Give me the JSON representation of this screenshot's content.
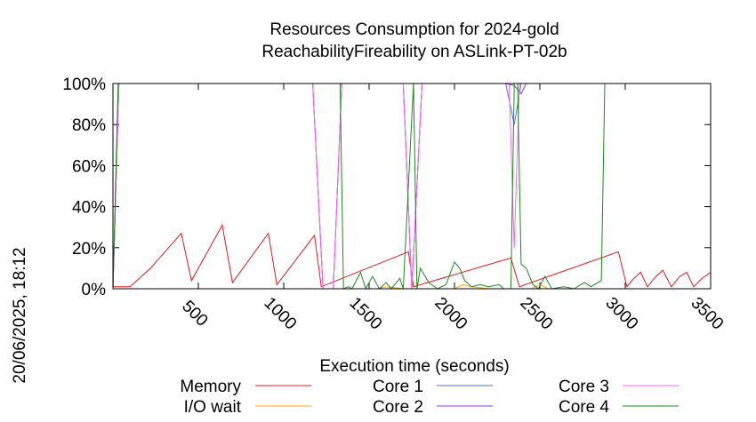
{
  "chart_data": {
    "type": "line",
    "title": "Resources Consumption for 2024-gold",
    "subtitle": "ReachabilityFireability on ASLink-PT-02b",
    "xlabel": "Execution time (seconds)",
    "ylabel": "",
    "side_label": "20/06/2025, 18:12",
    "xlim": [
      0,
      3500
    ],
    "ylim": [
      0,
      100
    ],
    "x_ticks": [
      500,
      1000,
      1500,
      2000,
      2500,
      3000,
      3500
    ],
    "y_ticks": [
      {
        "v": 0,
        "label": "0%"
      },
      {
        "v": 20,
        "label": "20%"
      },
      {
        "v": 40,
        "label": "40%"
      },
      {
        "v": 60,
        "label": "60%"
      },
      {
        "v": 80,
        "label": "80%"
      },
      {
        "v": 100,
        "label": "100%"
      }
    ],
    "grid": false,
    "legend_position": "bottom",
    "series": [
      {
        "name": "Memory",
        "color": "#e41a1c",
        "points": [
          [
            0,
            1
          ],
          [
            20,
            1
          ],
          [
            100,
            1
          ],
          [
            220,
            10
          ],
          [
            400,
            27
          ],
          [
            460,
            4
          ],
          [
            640,
            31
          ],
          [
            700,
            3
          ],
          [
            910,
            27
          ],
          [
            960,
            2
          ],
          [
            1180,
            26
          ],
          [
            1220,
            1
          ],
          [
            1730,
            18
          ],
          [
            1760,
            1
          ],
          [
            2330,
            15
          ],
          [
            2380,
            1
          ],
          [
            2960,
            18
          ],
          [
            3010,
            1
          ],
          [
            3050,
            5
          ],
          [
            3090,
            8
          ],
          [
            3130,
            1
          ],
          [
            3180,
            6
          ],
          [
            3220,
            9
          ],
          [
            3270,
            1
          ],
          [
            3320,
            6
          ],
          [
            3360,
            8
          ],
          [
            3400,
            1
          ],
          [
            3450,
            5
          ],
          [
            3500,
            8
          ]
        ]
      },
      {
        "name": "I/O wait",
        "color": "#ffa500",
        "points": [
          [
            0,
            0
          ],
          [
            1200,
            0
          ],
          [
            1550,
            0
          ],
          [
            1600,
            1
          ],
          [
            1700,
            0
          ],
          [
            2000,
            0
          ],
          [
            2050,
            2
          ],
          [
            2100,
            1
          ],
          [
            2200,
            0
          ],
          [
            2450,
            0
          ],
          [
            2500,
            2
          ],
          [
            2550,
            0
          ],
          [
            2900,
            0
          ],
          [
            3500,
            0
          ]
        ]
      },
      {
        "name": "Core 1",
        "color": "#4c72d8",
        "points": [
          [
            0,
            0
          ],
          [
            35,
            100
          ],
          [
            1170,
            100
          ],
          [
            1230,
            0
          ],
          [
            1290,
            0
          ],
          [
            1340,
            100
          ],
          [
            1700,
            100
          ],
          [
            1750,
            0
          ],
          [
            1810,
            100
          ],
          [
            2300,
            100
          ],
          [
            2350,
            80
          ],
          [
            2390,
            100
          ],
          [
            3500,
            100
          ]
        ]
      },
      {
        "name": "Core 2",
        "color": "#9933cc",
        "points": [
          [
            0,
            0
          ],
          [
            35,
            100
          ],
          [
            1170,
            100
          ],
          [
            1230,
            0
          ],
          [
            1290,
            0
          ],
          [
            1340,
            100
          ],
          [
            1700,
            100
          ],
          [
            1750,
            0
          ],
          [
            1810,
            100
          ],
          [
            2300,
            100
          ],
          [
            2350,
            99
          ],
          [
            2390,
            95
          ],
          [
            2420,
            100
          ],
          [
            3500,
            100
          ]
        ]
      },
      {
        "name": "Core 3",
        "color": "#ff66ff",
        "points": [
          [
            0,
            0
          ],
          [
            35,
            100
          ],
          [
            1170,
            100
          ],
          [
            1230,
            0
          ],
          [
            1290,
            0
          ],
          [
            1340,
            100
          ],
          [
            1700,
            100
          ],
          [
            1750,
            0
          ],
          [
            1810,
            100
          ],
          [
            2320,
            100
          ],
          [
            2350,
            20
          ],
          [
            2380,
            100
          ],
          [
            3500,
            100
          ]
        ]
      },
      {
        "name": "Core 4",
        "color": "#1a8a1a",
        "points": [
          [
            0,
            0
          ],
          [
            30,
            100
          ],
          [
            1330,
            100
          ],
          [
            1350,
            0
          ],
          [
            1380,
            1
          ],
          [
            1400,
            0
          ],
          [
            1450,
            8
          ],
          [
            1480,
            0
          ],
          [
            1520,
            6
          ],
          [
            1560,
            0
          ],
          [
            1600,
            3
          ],
          [
            1630,
            0
          ],
          [
            1680,
            5
          ],
          [
            1700,
            0
          ],
          [
            1760,
            100
          ],
          [
            1780,
            0
          ],
          [
            1800,
            10
          ],
          [
            1850,
            3
          ],
          [
            1900,
            0
          ],
          [
            1950,
            2
          ],
          [
            2000,
            13
          ],
          [
            2030,
            10
          ],
          [
            2060,
            4
          ],
          [
            2100,
            1
          ],
          [
            2150,
            2
          ],
          [
            2200,
            1
          ],
          [
            2260,
            2
          ],
          [
            2290,
            0
          ],
          [
            2330,
            0
          ],
          [
            2350,
            100
          ],
          [
            2370,
            100
          ],
          [
            2390,
            12
          ],
          [
            2420,
            10
          ],
          [
            2460,
            2
          ],
          [
            2490,
            0
          ],
          [
            2530,
            6
          ],
          [
            2570,
            0
          ],
          [
            2640,
            1
          ],
          [
            2700,
            0
          ],
          [
            2760,
            3
          ],
          [
            2800,
            1
          ],
          [
            2860,
            4
          ],
          [
            2880,
            100
          ],
          [
            3500,
            100
          ]
        ]
      }
    ]
  }
}
